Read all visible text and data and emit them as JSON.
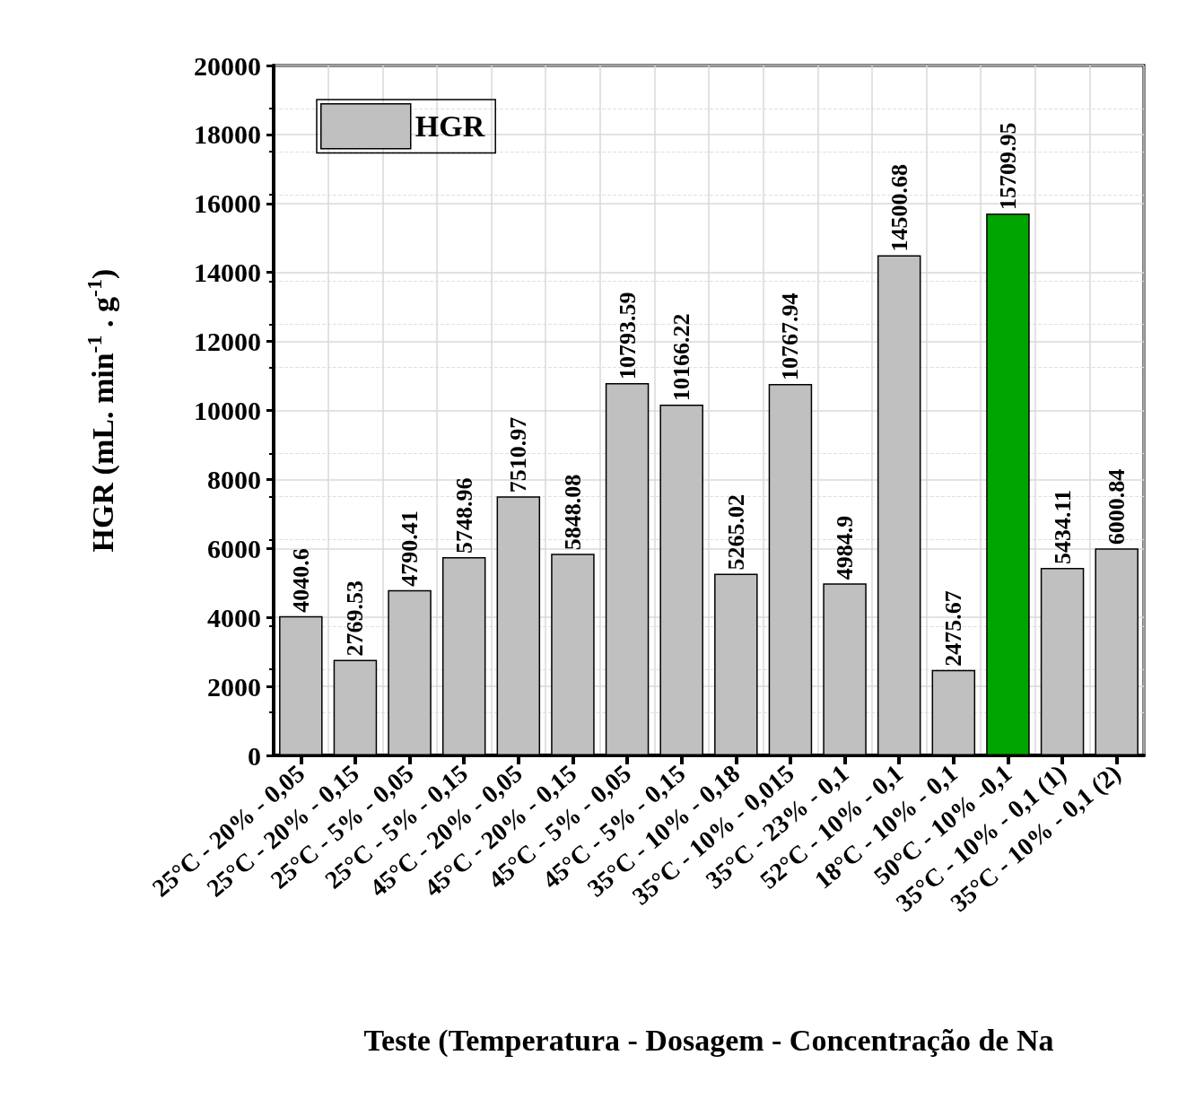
{
  "chart_data": {
    "type": "bar",
    "xlabel": "Teste (Temperatura - Dosagem - Concentração de Na",
    "ylabel": "HGR (mL. min$^{-1}$ . g$^{-1}$)",
    "categories": [
      "25°C - 20% - 0,05",
      "25°C - 20% - 0,15",
      "25°C - 5% - 0,05",
      "25°C - 5% - 0,15",
      "45°C - 20% - 0,05",
      "45°C - 20% - 0,15",
      "45°C - 5% - 0,05",
      "45°C - 5% - 0,15",
      "35°C - 10% - 0,18",
      "35°C - 10% - 0,015",
      "35°C - 23% - 0,1",
      "52°C - 10% - 0,1",
      "18°C - 10% - 0,1",
      "50°C - 10% -0,1",
      "35°C - 10% - 0,1 (1)",
      "35°C - 10% - 0,1 (2)"
    ],
    "series": [
      {
        "name": "HGR",
        "color": "#c0c0c0",
        "values": [
          4040.6,
          2769.53,
          4790.41,
          5748.96,
          7510.97,
          5848.08,
          10793.59,
          10166.22,
          5265.02,
          10767.94,
          4984.9,
          14500.68,
          2475.67,
          15709.95,
          5434.11,
          6000.84
        ],
        "colors": [
          "#c0c0c0",
          "#c0c0c0",
          "#c0c0c0",
          "#c0c0c0",
          "#c0c0c0",
          "#c0c0c0",
          "#c0c0c0",
          "#c0c0c0",
          "#c0c0c0",
          "#c0c0c0",
          "#c0c0c0",
          "#c0c0c0",
          "#c0c0c0",
          "#00a400",
          "#c0c0c0",
          "#c0c0c0"
        ]
      }
    ],
    "ylim": [
      0,
      20000
    ],
    "yticks": [
      0,
      2000,
      4000,
      6000,
      8000,
      10000,
      12000,
      14000,
      16000,
      18000,
      20000
    ],
    "grid": true,
    "legend": "top left",
    "data_labels": true
  }
}
